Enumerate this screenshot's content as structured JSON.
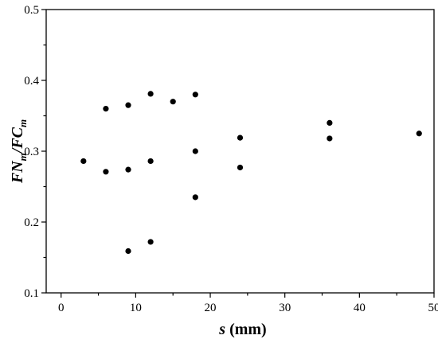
{
  "chart_data": {
    "type": "scatter",
    "title": "",
    "xlabel": {
      "var": "s",
      "unit": " (mm)"
    },
    "ylabel": {
      "num": "FN",
      "num_sub": "m",
      "slash": "/",
      "den": "FC",
      "den_sub": "m"
    },
    "xlim": [
      -2,
      50
    ],
    "ylim": [
      0.1,
      0.5
    ],
    "xticks": [
      0,
      10,
      20,
      30,
      40,
      50
    ],
    "yticks": [
      0.1,
      0.2,
      0.3,
      0.4,
      0.5
    ],
    "xtick_labels": [
      "0",
      "10",
      "20",
      "30",
      "40",
      "50"
    ],
    "ytick_labels": [
      "0.1",
      "0.2",
      "0.3",
      "0.4",
      "0.5"
    ],
    "grid": false,
    "marker_color": "#000000",
    "points": [
      {
        "x": 3,
        "y": 0.286
      },
      {
        "x": 6,
        "y": 0.36
      },
      {
        "x": 6,
        "y": 0.271
      },
      {
        "x": 9,
        "y": 0.365
      },
      {
        "x": 9,
        "y": 0.274
      },
      {
        "x": 9,
        "y": 0.159
      },
      {
        "x": 12,
        "y": 0.381
      },
      {
        "x": 12,
        "y": 0.286
      },
      {
        "x": 12,
        "y": 0.172
      },
      {
        "x": 15,
        "y": 0.37
      },
      {
        "x": 18,
        "y": 0.38
      },
      {
        "x": 18,
        "y": 0.3
      },
      {
        "x": 18,
        "y": 0.235
      },
      {
        "x": 24,
        "y": 0.319
      },
      {
        "x": 24,
        "y": 0.277
      },
      {
        "x": 36,
        "y": 0.34
      },
      {
        "x": 36,
        "y": 0.318
      },
      {
        "x": 48,
        "y": 0.325
      }
    ]
  }
}
